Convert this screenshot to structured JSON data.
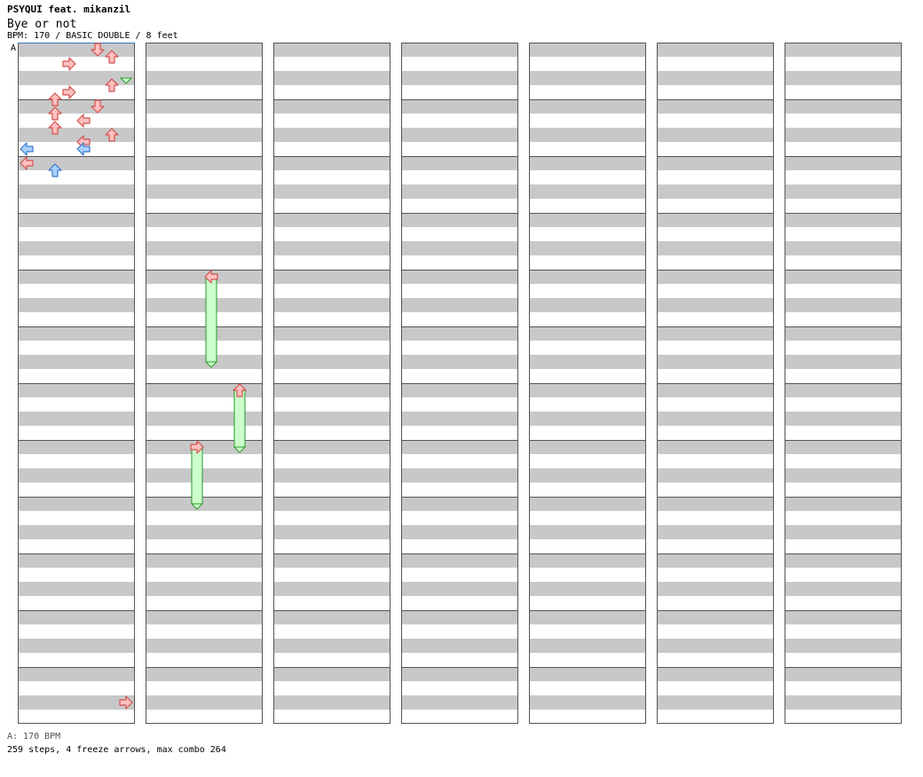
{
  "header": {
    "artist": "PSYQUI feat. mikanzil",
    "title": "Bye or not",
    "info": "BPM: 170 / BASIC DOUBLE / 8 feet"
  },
  "marker": {
    "label": "A"
  },
  "footer": {
    "bpm": "A: 170 BPM",
    "summary": "259 steps, 4 freeze arrows, max combo 264"
  },
  "colors": {
    "stripe": "#c8c8c8",
    "border": "#555555",
    "note_red_fill": "#ffc0c0",
    "note_red_stroke": "#d05050",
    "note_blue_fill": "#a8d0ff",
    "note_blue_stroke": "#3a78c8",
    "freeze_fill": "#ccffcc",
    "freeze_stroke": "#2a9a2a"
  },
  "chart_data": {
    "type": "step-chart",
    "bpm": 170,
    "style": "BASIC DOUBLE",
    "difficulty_feet": 8,
    "lanes": 8,
    "lane_directions": [
      "left",
      "down",
      "up",
      "right",
      "left",
      "down",
      "up",
      "right"
    ],
    "columns": 7,
    "measures_per_column": 12,
    "rows_per_measure": 8,
    "notes": [
      {
        "b": 0,
        "l": 5
      },
      {
        "b": 0.5,
        "l": 6
      },
      {
        "b": 1,
        "l": 3
      },
      {
        "b": 2.5,
        "l": 6
      },
      {
        "b": 3,
        "l": 3
      },
      {
        "b": 3.5,
        "l": 2
      },
      {
        "b": 4,
        "l": 5
      },
      {
        "b": 4.5,
        "l": 2
      },
      {
        "b": 5,
        "l": 4
      },
      {
        "b": 5.5,
        "l": 2
      },
      {
        "b": 6,
        "l": 6
      },
      {
        "b": 6.5,
        "l": 4
      },
      {
        "b": 7,
        "l": 4,
        "c": "b"
      },
      {
        "b": 7,
        "l": 0,
        "c": "b"
      },
      {
        "b": 8,
        "l": 0
      },
      {
        "b": 8.5,
        "l": 2,
        "c": "b"
      }
    ],
    "freezes": [
      {
        "start": 46,
        "end": 50,
        "l": 7
      },
      {
        "start": 64,
        "end": 70,
        "l": 4
      },
      {
        "start": 72,
        "end": 76,
        "l": 6
      },
      {
        "start": 76,
        "end": 80,
        "l": 3
      }
    ]
  }
}
